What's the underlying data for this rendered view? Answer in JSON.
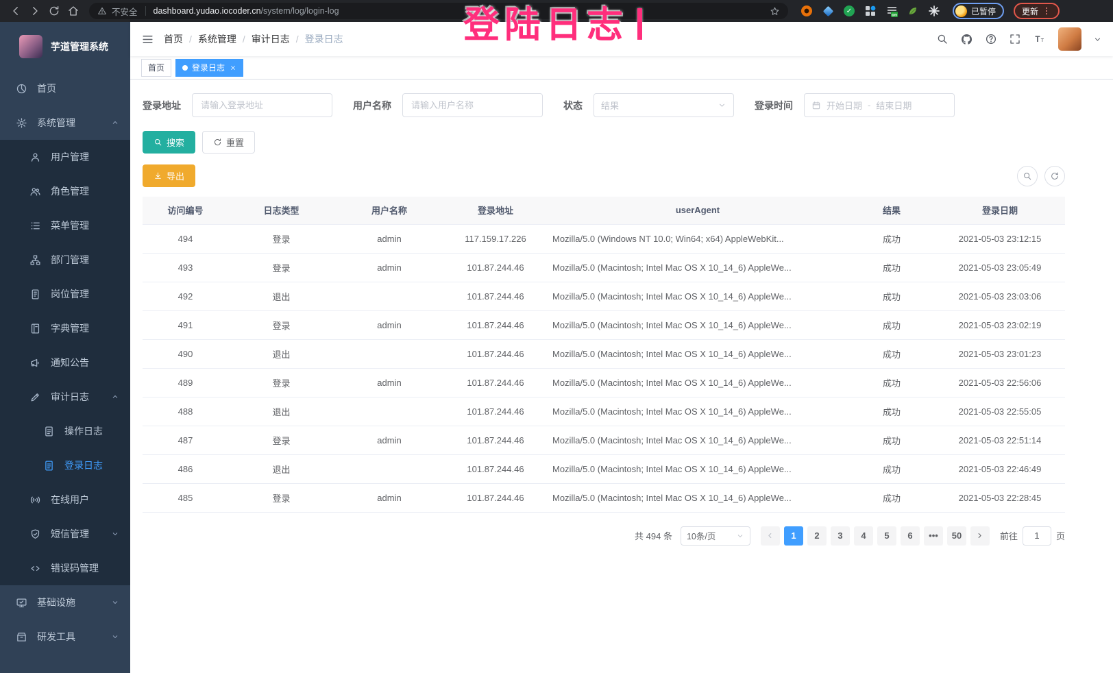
{
  "colors": {
    "accent": "#409eff",
    "search_button_teal": "#23afa0",
    "export_button_orange": "#f0aa2d",
    "annotation_pink": "#ff2e7c",
    "sidebar_bg": "#304156",
    "sidebar_submenu_bg": "#1f2d3d"
  },
  "browser": {
    "security_label": "不安全",
    "url_host": "dashboard.yudao.iocoder.cn",
    "url_path": "/system/log/login-log",
    "paused_label": "已暂停",
    "update_label": "更新"
  },
  "overlay": {
    "title": "登陆日志"
  },
  "sidebar": {
    "app_title": "芋道管理系统",
    "items": [
      {
        "id": "home",
        "label": "首页",
        "icon": "dashboard",
        "level": 1
      },
      {
        "id": "system-management",
        "label": "系统管理",
        "icon": "gear",
        "level": 1,
        "arrow": "up"
      },
      {
        "id": "user-management",
        "label": "用户管理",
        "icon": "user",
        "level": 2
      },
      {
        "id": "role-management",
        "label": "角色管理",
        "icon": "users",
        "level": 2
      },
      {
        "id": "menu-management",
        "label": "菜单管理",
        "icon": "menu-list",
        "level": 2
      },
      {
        "id": "department-management",
        "label": "部门管理",
        "icon": "tree",
        "level": 2
      },
      {
        "id": "post-management",
        "label": "岗位管理",
        "icon": "badge",
        "level": 2
      },
      {
        "id": "dict-management",
        "label": "字典管理",
        "icon": "book",
        "level": 2
      },
      {
        "id": "notice-announcement",
        "label": "通知公告",
        "icon": "megaphone",
        "level": 2
      },
      {
        "id": "audit-log",
        "label": "审计日志",
        "icon": "edit",
        "level": 2,
        "arrow": "up"
      },
      {
        "id": "operation-log",
        "label": "操作日志",
        "icon": "doc",
        "level": 3
      },
      {
        "id": "login-log",
        "label": "登录日志",
        "icon": "doc",
        "level": 3,
        "active": true
      },
      {
        "id": "online-users",
        "label": "在线用户",
        "icon": "online",
        "level": 2
      },
      {
        "id": "sms-management",
        "label": "短信管理",
        "icon": "shield",
        "level": 2,
        "arrow": "down"
      },
      {
        "id": "error-code-management",
        "label": "错误码管理",
        "icon": "code",
        "level": 2
      },
      {
        "id": "infrastructure",
        "label": "基础设施",
        "icon": "infra",
        "level": 1,
        "arrow": "down"
      },
      {
        "id": "dev-tools",
        "label": "研发工具",
        "icon": "tool",
        "level": 1,
        "arrow": "down"
      }
    ]
  },
  "breadcrumb": {
    "separator": "/",
    "items": [
      "首页",
      "系统管理",
      "审计日志",
      "登录日志"
    ]
  },
  "tags": [
    {
      "label": "首页",
      "active": false,
      "closable": false
    },
    {
      "label": "登录日志",
      "active": true,
      "closable": true
    }
  ],
  "filters": {
    "login_address_label": "登录地址",
    "login_address_placeholder": "请输入登录地址",
    "username_label": "用户名称",
    "username_placeholder": "请输入用户名称",
    "status_label": "状态",
    "status_placeholder": "结果",
    "login_time_label": "登录时间",
    "date_start_placeholder": "开始日期",
    "date_separator": "-",
    "date_end_placeholder": "结束日期"
  },
  "toolbar": {
    "search_label": "搜索",
    "reset_label": "重置",
    "export_label": "导出"
  },
  "table": {
    "columns": [
      "访问编号",
      "日志类型",
      "用户名称",
      "登录地址",
      "userAgent",
      "结果",
      "登录日期"
    ],
    "rows": [
      {
        "id": "494",
        "type": "登录",
        "user": "admin",
        "ip": "117.159.17.226",
        "agent": "Mozilla/5.0 (Windows NT 10.0; Win64; x64) AppleWebKit...",
        "result": "成功",
        "date": "2021-05-03 23:12:15"
      },
      {
        "id": "493",
        "type": "登录",
        "user": "admin",
        "ip": "101.87.244.46",
        "agent": "Mozilla/5.0 (Macintosh; Intel Mac OS X 10_14_6) AppleWe...",
        "result": "成功",
        "date": "2021-05-03 23:05:49"
      },
      {
        "id": "492",
        "type": "退出",
        "user": "",
        "ip": "101.87.244.46",
        "agent": "Mozilla/5.0 (Macintosh; Intel Mac OS X 10_14_6) AppleWe...",
        "result": "成功",
        "date": "2021-05-03 23:03:06"
      },
      {
        "id": "491",
        "type": "登录",
        "user": "admin",
        "ip": "101.87.244.46",
        "agent": "Mozilla/5.0 (Macintosh; Intel Mac OS X 10_14_6) AppleWe...",
        "result": "成功",
        "date": "2021-05-03 23:02:19"
      },
      {
        "id": "490",
        "type": "退出",
        "user": "",
        "ip": "101.87.244.46",
        "agent": "Mozilla/5.0 (Macintosh; Intel Mac OS X 10_14_6) AppleWe...",
        "result": "成功",
        "date": "2021-05-03 23:01:23"
      },
      {
        "id": "489",
        "type": "登录",
        "user": "admin",
        "ip": "101.87.244.46",
        "agent": "Mozilla/5.0 (Macintosh; Intel Mac OS X 10_14_6) AppleWe...",
        "result": "成功",
        "date": "2021-05-03 22:56:06"
      },
      {
        "id": "488",
        "type": "退出",
        "user": "",
        "ip": "101.87.244.46",
        "agent": "Mozilla/5.0 (Macintosh; Intel Mac OS X 10_14_6) AppleWe...",
        "result": "成功",
        "date": "2021-05-03 22:55:05"
      },
      {
        "id": "487",
        "type": "登录",
        "user": "admin",
        "ip": "101.87.244.46",
        "agent": "Mozilla/5.0 (Macintosh; Intel Mac OS X 10_14_6) AppleWe...",
        "result": "成功",
        "date": "2021-05-03 22:51:14"
      },
      {
        "id": "486",
        "type": "退出",
        "user": "",
        "ip": "101.87.244.46",
        "agent": "Mozilla/5.0 (Macintosh; Intel Mac OS X 10_14_6) AppleWe...",
        "result": "成功",
        "date": "2021-05-03 22:46:49"
      },
      {
        "id": "485",
        "type": "登录",
        "user": "admin",
        "ip": "101.87.244.46",
        "agent": "Mozilla/5.0 (Macintosh; Intel Mac OS X 10_14_6) AppleWe...",
        "result": "成功",
        "date": "2021-05-03 22:28:45"
      }
    ]
  },
  "pagination": {
    "total_label": "共 494 条",
    "page_size_label": "10条/页",
    "pages": [
      "1",
      "2",
      "3",
      "4",
      "5",
      "6",
      "•••",
      "50"
    ],
    "active_page": "1",
    "goto_label": "前往",
    "goto_value": "1",
    "page_unit_label": "页"
  }
}
